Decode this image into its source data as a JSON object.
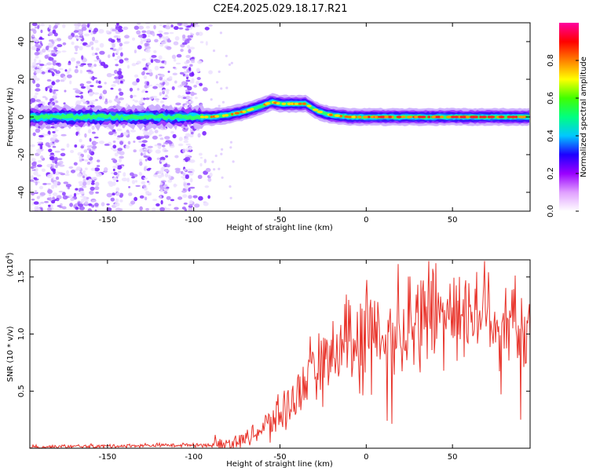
{
  "title": "C2E4.2025.029.18.17.R21",
  "chart_data": [
    {
      "type": "heatmap",
      "xlabel": "Height of straight line (km)",
      "ylabel": "Frequency (Hz)",
      "xlim": [
        -195,
        95
      ],
      "ylim": [
        -50,
        50
      ],
      "xticks": [
        -150,
        -100,
        -50,
        0,
        50
      ],
      "yticks": [
        -40,
        -20,
        0,
        20,
        40
      ],
      "colorbar": {
        "label": "Normalized spectral amplitude",
        "range": [
          0.0,
          1.0
        ],
        "ticks": [
          0.0,
          0.2,
          0.4,
          0.6,
          0.8
        ],
        "colormap": [
          "#ffffff",
          "#e0a0ff",
          "#9a00ff",
          "#1d00ff",
          "#00c8ff",
          "#00ff80",
          "#40ff00",
          "#ffff00",
          "#ff8000",
          "#ff0000",
          "#ff00a0"
        ]
      },
      "ridge": {
        "x": [
          -190,
          -175,
          -160,
          -145,
          -130,
          -115,
          -100,
          -90,
          -80,
          -70,
          -60,
          -55,
          -50,
          -45,
          -40,
          -35,
          -30,
          -25,
          -20,
          -15,
          -10,
          -5,
          0,
          25,
          50,
          75,
          90
        ],
        "y": [
          0,
          0,
          0,
          0,
          0,
          0,
          0,
          0,
          1,
          3,
          6,
          8,
          7,
          7,
          7,
          7,
          4,
          2,
          1,
          0.5,
          0,
          0,
          0,
          0,
          0,
          0,
          0
        ]
      },
      "noise_region_x": [
        -195,
        -90
      ]
    },
    {
      "type": "line",
      "xlabel": "Height of straight line (km)",
      "ylabel": "SNR (10 * v/v)",
      "scale_label": "(x10",
      "scale_exp": "4",
      "xlim": [
        -195,
        95
      ],
      "ylim": [
        0,
        1.65
      ],
      "xticks": [
        -150,
        -100,
        -50,
        0,
        50
      ],
      "yticks": [
        0.5,
        1.0,
        1.5
      ],
      "ytick_labels": [
        "0.5",
        "1.0",
        "1.5"
      ],
      "color": "#e8332a",
      "trend": {
        "x": [
          -195,
          -100,
          -85,
          -75,
          -65,
          -55,
          -45,
          -35,
          -25,
          -15,
          -5,
          0,
          10,
          20,
          30,
          40,
          50,
          60,
          70,
          80,
          90,
          95
        ],
        "y": [
          0.01,
          0.03,
          0.03,
          0.06,
          0.12,
          0.22,
          0.38,
          0.58,
          0.75,
          0.88,
          0.95,
          1.0,
          1.02,
          1.1,
          1.18,
          1.22,
          1.22,
          1.2,
          1.18,
          1.15,
          1.05,
          1.0
        ]
      }
    }
  ]
}
